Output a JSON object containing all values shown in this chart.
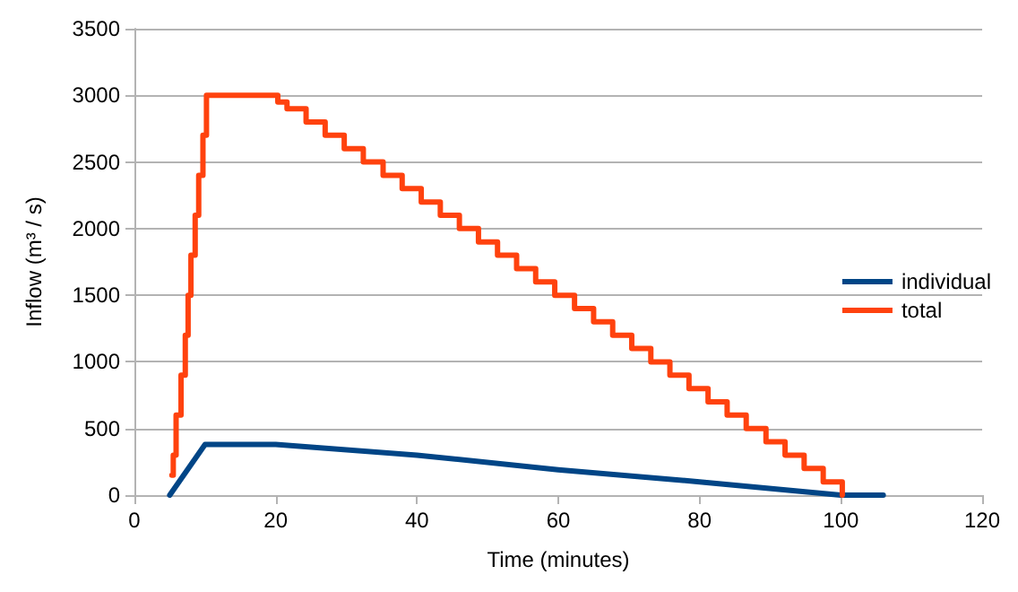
{
  "chart_data": {
    "type": "line",
    "xlabel": "Time (minutes)",
    "ylabel": "Inflow (m³ / s)",
    "xlim": [
      0,
      120
    ],
    "xticks": [
      0,
      20,
      40,
      60,
      80,
      100,
      120
    ],
    "ylim": [
      0,
      3500
    ],
    "yticks": [
      0,
      500,
      1000,
      1500,
      2000,
      2500,
      3000,
      3500
    ],
    "grid": "y",
    "legend": "right",
    "marker": "none",
    "line_style": "solid",
    "series": [
      {
        "name": "individual",
        "color": "#004586",
        "x": [
          5,
          10,
          20,
          40,
          60,
          80,
          100,
          106
        ],
        "values": [
          0,
          380,
          380,
          300,
          190,
          100,
          0,
          0
        ]
      },
      {
        "name": "total",
        "color": "#ff420e",
        "type": "step",
        "x": [
          5.3,
          5.5,
          5.9,
          6.6,
          7.2,
          7.6,
          8.0,
          8.6,
          9.1,
          9.7,
          10.2,
          20.3,
          21.6,
          24.3,
          27.0,
          29.7,
          32.4,
          35.2,
          37.9,
          40.6,
          43.3,
          46.0,
          48.7,
          51.4,
          54.1,
          56.8,
          59.5,
          62.3,
          65.0,
          67.7,
          70.4,
          73.1,
          75.8,
          78.5,
          81.2,
          83.9,
          86.6,
          89.4,
          92.1,
          94.8,
          97.5,
          100.2
        ],
        "values": [
          150,
          300,
          600,
          900,
          1200,
          1500,
          1800,
          2100,
          2400,
          2700,
          3000,
          2950,
          2900,
          2800,
          2700,
          2600,
          2500,
          2400,
          2300,
          2200,
          2100,
          2000,
          1900,
          1800,
          1700,
          1600,
          1500,
          1400,
          1300,
          1200,
          1100,
          1000,
          900,
          800,
          700,
          600,
          500,
          400,
          300,
          200,
          100,
          0
        ]
      }
    ]
  }
}
